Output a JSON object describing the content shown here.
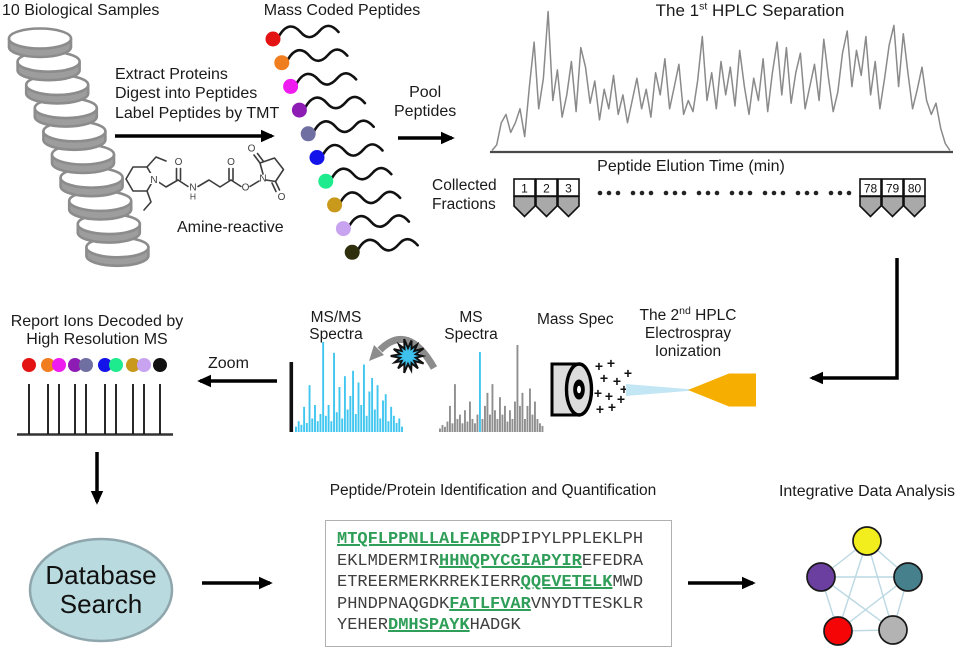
{
  "samples": {
    "title": "10 Biological Samples",
    "count": 10
  },
  "process_arrow": {
    "lines": [
      "Extract Proteins",
      "Digest into Peptides",
      "Label Peptides by TMT"
    ]
  },
  "tmt": {
    "label": "Amine-reactive"
  },
  "mass_coded": {
    "title": "Mass Coded Peptides",
    "tag_colors": [
      "#e41313",
      "#f07d1e",
      "#ef1cef",
      "#8d1cb5",
      "#6f6fa2",
      "#1414ea",
      "#1eeb8d",
      "#c9991c",
      "#c8a3f0",
      "#2f2f0d"
    ]
  },
  "pool": {
    "lines": [
      "Pool",
      "Peptides"
    ]
  },
  "hplc1": {
    "title_parts": {
      "pre": "The 1",
      "sup": "st",
      "post": " HPLC Separation"
    },
    "color": "#8a8a8a",
    "trace": [
      0,
      0.04,
      0.2,
      0.26,
      0.13,
      0.2,
      0.3,
      0.1,
      0.46,
      0.78,
      0.3,
      0.52,
      1,
      0.36,
      0.58,
      0.24,
      0.4,
      0.64,
      0.28,
      0.74,
      0.6,
      0.34,
      0.5,
      0.22,
      0.44,
      0.3,
      0.54,
      0.26,
      0.4,
      0.2,
      0.36,
      0.52,
      0.3,
      0.44,
      0.24,
      0.56,
      0.4,
      0.66,
      0.3,
      0.46,
      0.62,
      0.26,
      0.36,
      0.28,
      0.5,
      0.82,
      0.36,
      0.56,
      0.3,
      0.64,
      0.4,
      0.6,
      0.32,
      0.72,
      0.46,
      0.26,
      0.52,
      0.36,
      0.66,
      0.28,
      0.56,
      0.78,
      0.4,
      0.74,
      0.34,
      0.56,
      0.7,
      0.3,
      0.46,
      0.62,
      0.36,
      0.8,
      0.52,
      0.28,
      0.42,
      0.7,
      0.86,
      0.46,
      0.72,
      0.54,
      0.82,
      0.4,
      0.64,
      0.3,
      0.52,
      0.76,
      0.9,
      0.46,
      0.84,
      0.56,
      0.3,
      0.44,
      0.6,
      0.36,
      0.26,
      0.34,
      0.16,
      0.05,
      0
    ]
  },
  "fractions": {
    "axis_label": "Peptide Elution Time (min)",
    "collected": [
      "Collected",
      "Fractions"
    ],
    "left": [
      "1",
      "2",
      "3"
    ],
    "right": [
      "78",
      "79",
      "80"
    ],
    "gap_dot_groups": 8,
    "vial_color": "#a9a9a9"
  },
  "report_ions": {
    "title": [
      "Report Ions Decoded by",
      "High Resolution MS"
    ],
    "dot_colors": [
      "#e41313",
      "#f07d1e",
      "#ef1cef",
      "#8d1cb5",
      "#6f6fa2",
      "#1414ea",
      "#1eeb8d",
      "#c9991c",
      "#c8a3f0",
      "#111111"
    ],
    "stick_x": [
      14,
      33,
      44,
      60,
      71,
      90,
      101,
      118,
      129,
      145
    ]
  },
  "zoom_arrow": {
    "label": "Zoom"
  },
  "msms": {
    "label": [
      "MS/MS",
      "Spectra"
    ],
    "color": "#41c6ef",
    "peaks": [
      0.06,
      0.12,
      0.08,
      0.28,
      0.1,
      0.52,
      0.15,
      0.3,
      0.12,
      0.2,
      1,
      0.18,
      0.3,
      0.12,
      0.88,
      0.22,
      0.5,
      0.15,
      0.62,
      0.25,
      0.4,
      0.68,
      0.2,
      0.55,
      0.3,
      0.75,
      0.18,
      0.45,
      0.6,
      0.25,
      0.52,
      0.15,
      0.35,
      0.42,
      0.12,
      0.28,
      0.18,
      0.1,
      0.15,
      0.06
    ]
  },
  "ms": {
    "label": [
      "MS",
      "Spectra"
    ],
    "color": "#8f8f8f",
    "highlight_index": 16,
    "highlight_color": "#41c6ef",
    "peaks": [
      0.04,
      0.08,
      0.06,
      0.12,
      0.3,
      0.1,
      0.55,
      0.15,
      0.2,
      0.1,
      0.25,
      0.12,
      0.35,
      0.15,
      0.1,
      0.2,
      0.92,
      0.15,
      0.3,
      0.45,
      0.2,
      0.55,
      0.25,
      0.15,
      0.4,
      0.2,
      0.3,
      0.12,
      0.25,
      0.15,
      0.35,
      1,
      0.3,
      0.45,
      0.15,
      0.3,
      0.5,
      0.2,
      0.35,
      0.15,
      0.1,
      0.07
    ]
  },
  "mass_spec": {
    "label": "Mass Spec",
    "spray_color": "#c3e6f4",
    "emitter_color": "#f6ae00"
  },
  "hplc2": {
    "line1": {
      "pre": "The 2",
      "sup": "nd",
      "post": " HPLC"
    },
    "line2": "Electrospray",
    "line3": "Ionization"
  },
  "database": {
    "lines": [
      "Database",
      "Search"
    ],
    "fill": "#b9dade",
    "border": "#8fa6ad"
  },
  "identification": {
    "title": "Peptide/Protein Identification and Quantification",
    "highlight_color": "#2f9e58",
    "lines": [
      [
        {
          "t": "MTQFLPPNLLALFAPR",
          "hl": true
        },
        {
          "t": "DPIPYLPPLEKLPH",
          "hl": false
        }
      ],
      [
        {
          "t": "EKLMDERMIR",
          "hl": false
        },
        {
          "t": "HHNQPYCGIAPYIR",
          "hl": true
        },
        {
          "t": "EFEDRA",
          "hl": false
        }
      ],
      [
        {
          "t": "ETREERMERKRREKIERR",
          "hl": false
        },
        {
          "t": "QQEVETELK",
          "hl": true
        },
        {
          "t": "MWD",
          "hl": false
        }
      ],
      [
        {
          "t": "PHNDPNAQGDK",
          "hl": false
        },
        {
          "t": "FATLFVAR",
          "hl": true
        },
        {
          "t": "VNYDTTESKLR",
          "hl": false
        }
      ],
      [
        {
          "t": "YEHER",
          "hl": false
        },
        {
          "t": "DMHSPAYK",
          "hl": true
        },
        {
          "t": "HADGK",
          "hl": false
        }
      ]
    ]
  },
  "network": {
    "title": "Integrative Data Analysis",
    "node_colors": [
      "#f2ee1d",
      "#6a3fa0",
      "#45808c",
      "#f50506",
      "#b3b3b3"
    ],
    "edge_color": "#bcd8e3"
  }
}
